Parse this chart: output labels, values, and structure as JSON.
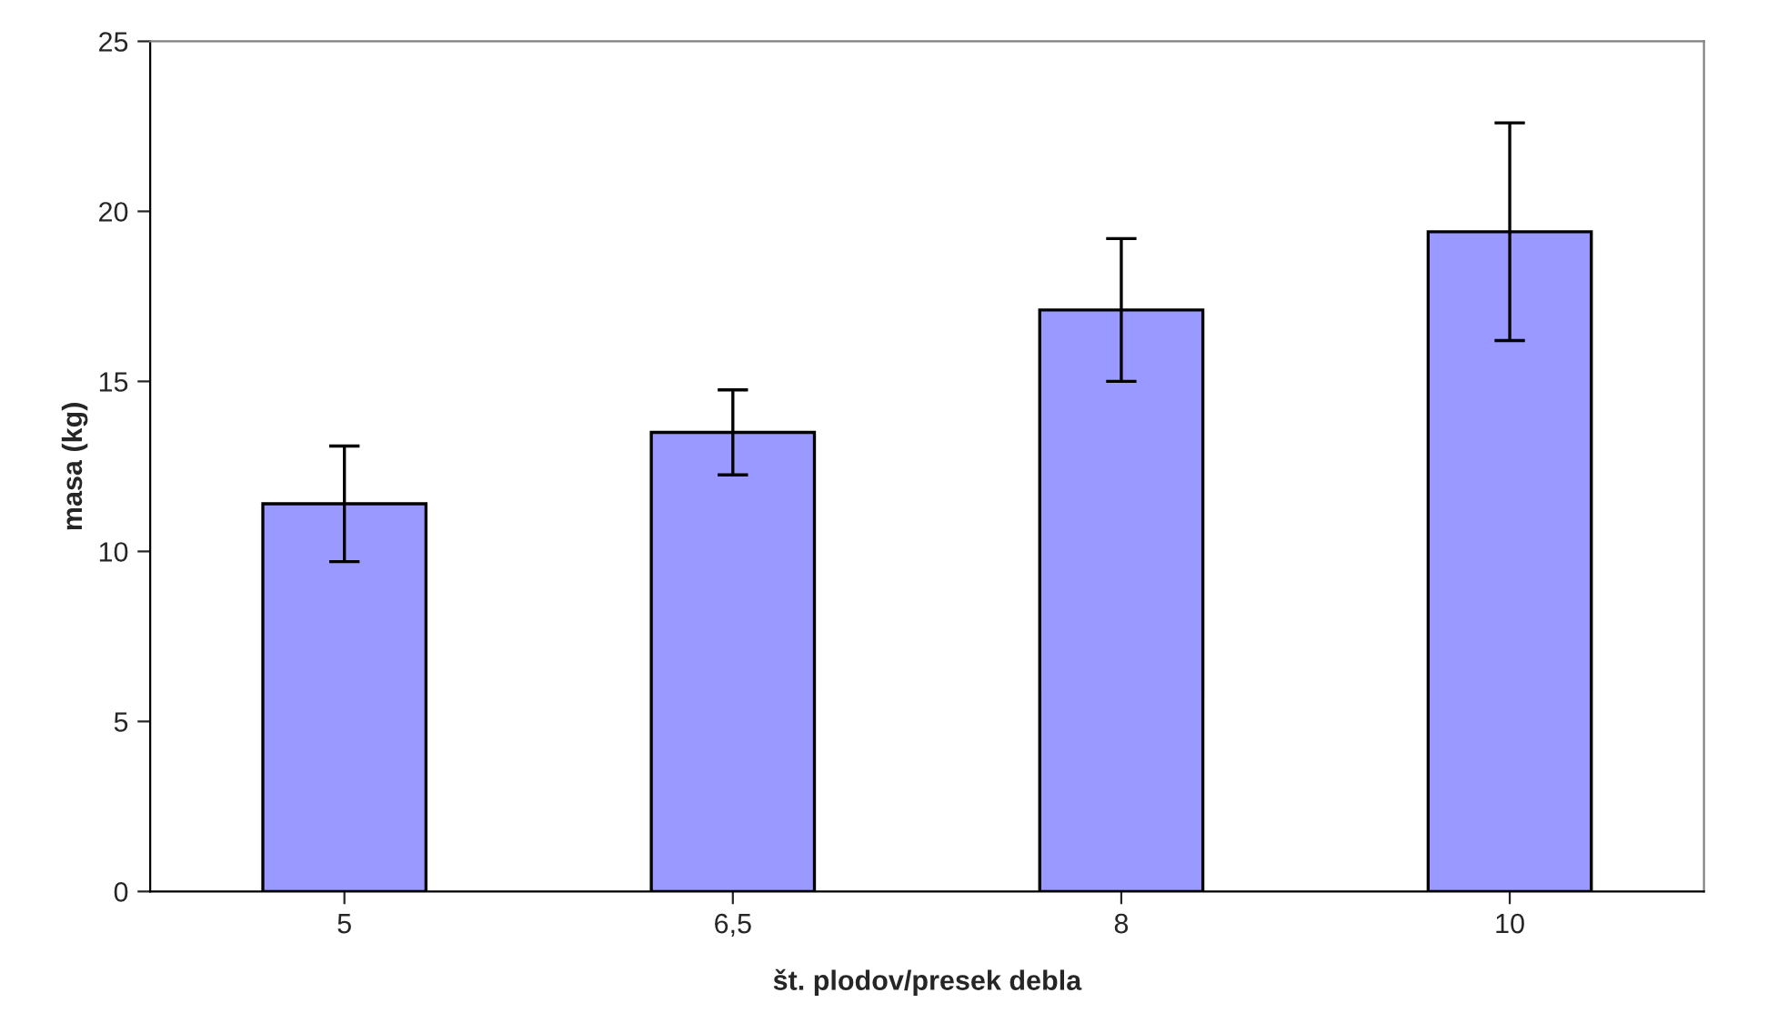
{
  "chart_data": {
    "type": "bar",
    "xlabel": "št. plodov/presek debla",
    "ylabel": "masa (kg)",
    "categories": [
      "5",
      "6,5",
      "8",
      "10"
    ],
    "values": [
      11.4,
      13.5,
      17.1,
      19.4
    ],
    "errors": [
      1.7,
      1.25,
      2.1,
      3.2
    ],
    "color": "#9999ff",
    "ylim": [
      0,
      25
    ],
    "yticks": [
      0,
      5,
      10,
      15,
      20,
      25
    ],
    "grid": false,
    "legend": false
  }
}
